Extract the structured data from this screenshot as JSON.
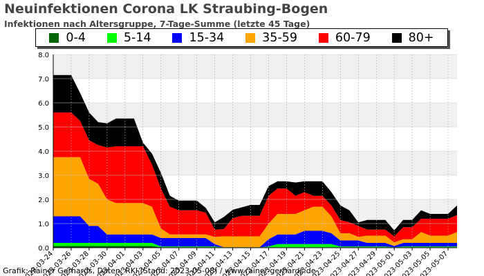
{
  "title": "Neuinfektionen Corona LK Straubing-Bogen",
  "subtitle": "Infektionen nach Altersgruppe, 7-Tage-Summe (letzte 45 Tage)",
  "credit": "Grafik: Rainer Gerhards, Daten: RKI (Stand: 2023-05-08) / www.rainer-gerhards.de",
  "legend": [
    {
      "label": "0-4",
      "color": "#006400"
    },
    {
      "label": "5-14",
      "color": "#00ff00"
    },
    {
      "label": "15-34",
      "color": "#0000ff"
    },
    {
      "label": "35-59",
      "color": "#ffa500"
    },
    {
      "label": "60-79",
      "color": "#ff0000"
    },
    {
      "label": "80+",
      "color": "#000000"
    }
  ],
  "chart_data": {
    "type": "area",
    "stacked": true,
    "ylim": [
      0,
      8
    ],
    "yticks": [
      "0.0",
      "1.0",
      "2.0",
      "3.0",
      "4.0",
      "5.0",
      "6.0",
      "7.0",
      "8.0"
    ],
    "xticks": [
      "2023-03-24",
      "2023-03-26",
      "2023-03-28",
      "2023-03-30",
      "2023-04-01",
      "2023-04-03",
      "2023-04-05",
      "2023-04-07",
      "2023-04-09",
      "2023-04-11",
      "2023-04-13",
      "2023-04-15",
      "2023-04-17",
      "2023-04-19",
      "2023-04-21",
      "2023-04-23",
      "2023-04-25",
      "2023-04-27",
      "2023-04-29",
      "2023-05-01",
      "2023-05-03",
      "2023-05-05",
      "2023-05-07"
    ],
    "x": [
      "2023-03-24",
      "2023-03-25",
      "2023-03-26",
      "2023-03-27",
      "2023-03-28",
      "2023-03-29",
      "2023-03-30",
      "2023-03-31",
      "2023-04-01",
      "2023-04-02",
      "2023-04-03",
      "2023-04-04",
      "2023-04-05",
      "2023-04-06",
      "2023-04-07",
      "2023-04-08",
      "2023-04-09",
      "2023-04-10",
      "2023-04-11",
      "2023-04-12",
      "2023-04-13",
      "2023-04-14",
      "2023-04-15",
      "2023-04-16",
      "2023-04-17",
      "2023-04-18",
      "2023-04-19",
      "2023-04-20",
      "2023-04-21",
      "2023-04-22",
      "2023-04-23",
      "2023-04-24",
      "2023-04-25",
      "2023-04-26",
      "2023-04-27",
      "2023-04-28",
      "2023-04-29",
      "2023-04-30",
      "2023-05-01",
      "2023-05-02",
      "2023-05-03",
      "2023-05-04",
      "2023-05-05",
      "2023-05-06",
      "2023-05-07",
      "2023-05-08"
    ],
    "series": [
      {
        "name": "0-4",
        "color": "#006400",
        "values": [
          0.07,
          0.07,
          0.07,
          0.07,
          0.07,
          0.07,
          0.07,
          0.07,
          0.07,
          0.07,
          0.07,
          0.07,
          0.02,
          0.02,
          0.02,
          0.02,
          0.02,
          0.02,
          0.02,
          0.02,
          0.02,
          0.02,
          0.02,
          0.02,
          0.02,
          0.02,
          0.02,
          0.02,
          0.02,
          0.02,
          0.02,
          0.02,
          0.02,
          0.02,
          0.02,
          0.02,
          0.02,
          0.02,
          0.02,
          0.02,
          0.02,
          0.02,
          0.02,
          0.02,
          0.02,
          0.02
        ]
      },
      {
        "name": "5-14",
        "color": "#00ff00",
        "values": [
          0.13,
          0.13,
          0.13,
          0.13,
          0.13,
          0.13,
          0.13,
          0.13,
          0.13,
          0.13,
          0.13,
          0.13,
          0.03,
          0.03,
          0.03,
          0.03,
          0.03,
          0.03,
          0.03,
          0.0,
          0.0,
          0.0,
          0.0,
          0.0,
          0.03,
          0.13,
          0.13,
          0.13,
          0.13,
          0.13,
          0.13,
          0.13,
          0.03,
          0.03,
          0.03,
          0.03,
          0.03,
          0.03,
          0.0,
          0.03,
          0.03,
          0.03,
          0.03,
          0.03,
          0.03,
          0.03
        ]
      },
      {
        "name": "15-34",
        "color": "#0000ff",
        "values": [
          1.1,
          1.1,
          1.1,
          1.1,
          0.7,
          0.7,
          0.35,
          0.35,
          0.35,
          0.35,
          0.35,
          0.35,
          0.35,
          0.35,
          0.35,
          0.35,
          0.35,
          0.35,
          0.1,
          0.0,
          0.0,
          0.0,
          0.0,
          0.0,
          0.3,
          0.4,
          0.4,
          0.4,
          0.55,
          0.55,
          0.55,
          0.45,
          0.25,
          0.25,
          0.25,
          0.15,
          0.15,
          0.15,
          0.05,
          0.15,
          0.15,
          0.15,
          0.15,
          0.15,
          0.15,
          0.15
        ]
      },
      {
        "name": "35-59",
        "color": "#ffa500",
        "values": [
          2.45,
          2.45,
          2.45,
          2.45,
          1.95,
          1.75,
          1.45,
          1.3,
          1.3,
          1.3,
          1.3,
          1.15,
          0.4,
          0.15,
          0.15,
          0.15,
          0.15,
          0.15,
          0.3,
          0.45,
          0.45,
          0.45,
          0.45,
          0.45,
          0.65,
          0.85,
          0.85,
          0.85,
          0.85,
          1.0,
          1.0,
          0.7,
          0.3,
          0.3,
          0.15,
          0.3,
          0.3,
          0.3,
          0.15,
          0.15,
          0.15,
          0.45,
          0.3,
          0.3,
          0.3,
          0.45
        ]
      },
      {
        "name": "60-79",
        "color": "#ff0000",
        "values": [
          1.85,
          1.85,
          1.85,
          1.5,
          1.6,
          1.6,
          2.15,
          2.35,
          2.35,
          2.35,
          2.35,
          1.75,
          1.65,
          1.15,
          1.0,
          1.0,
          1.0,
          0.9,
          0.3,
          0.3,
          0.75,
          0.85,
          0.85,
          0.85,
          1.15,
          1.05,
          1.05,
          0.75,
          0.75,
          0.45,
          0.45,
          0.45,
          0.55,
          0.45,
          0.45,
          0.25,
          0.25,
          0.25,
          0.25,
          0.5,
          0.5,
          0.55,
          0.7,
          0.7,
          0.7,
          0.7
        ]
      },
      {
        "name": "80+",
        "color": "#000000",
        "values": [
          1.55,
          1.55,
          1.55,
          1.15,
          1.15,
          0.95,
          1.0,
          1.15,
          1.15,
          1.15,
          0.15,
          0.45,
          0.65,
          0.45,
          0.4,
          0.4,
          0.4,
          0.2,
          0.3,
          0.5,
          0.35,
          0.35,
          0.45,
          0.45,
          0.4,
          0.3,
          0.3,
          0.55,
          0.45,
          0.6,
          0.6,
          0.55,
          0.6,
          0.5,
          0.15,
          0.4,
          0.4,
          0.4,
          0.25,
          0.3,
          0.3,
          0.35,
          0.2,
          0.2,
          0.2,
          0.4
        ]
      }
    ]
  }
}
